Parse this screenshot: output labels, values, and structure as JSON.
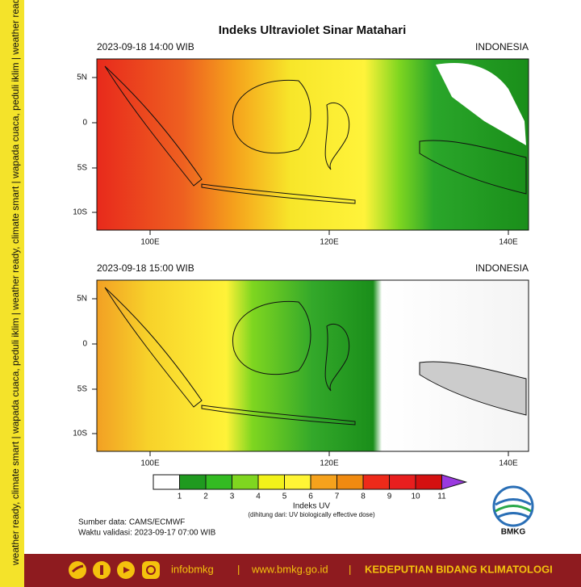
{
  "title": "Indeks Ultraviolet Sinar Matahari",
  "side_text": "weather ready, climate smart | wapada cuaca, peduli iklim | weather ready, climate smart | wapada cuaca, peduli iklim | weather ready, climate smart | wapada cuaca, peduli iklim",
  "panels": [
    {
      "time": "2023-09-18  14:00 WIB",
      "region": "INDONESIA"
    },
    {
      "time": "2023-09-18  15:00 WIB",
      "region": "INDONESIA"
    }
  ],
  "lat_labels": [
    "5N",
    "0",
    "5S",
    "10S"
  ],
  "lon_labels": [
    "100E",
    "120E",
    "140E"
  ],
  "colorbar": {
    "labels": [
      "1",
      "2",
      "3",
      "4",
      "5",
      "6",
      "7",
      "8",
      "9",
      "10",
      "11"
    ],
    "colors": [
      "#ffffff",
      "#1f9a1f",
      "#33bb22",
      "#7fd620",
      "#f2f21a",
      "#fff535",
      "#f6a21c",
      "#f08a10",
      "#ee2a1a",
      "#e81e1e",
      "#d41010",
      "#9a3adf"
    ],
    "title": "Indeks UV",
    "note": "(dihitung dari: UV biologically effective dose)"
  },
  "source": "Sumber data: CAMS/ECMWF",
  "validity": "Waktu validasi: 2023-09-17 07:00 WIB",
  "logo": "BMKG",
  "footer": {
    "handle": "infobmkg",
    "separator": "|",
    "website": "www.bmkg.go.id",
    "department": "KEDEPUTIAN BIDANG KLIMATOLOGI"
  }
}
